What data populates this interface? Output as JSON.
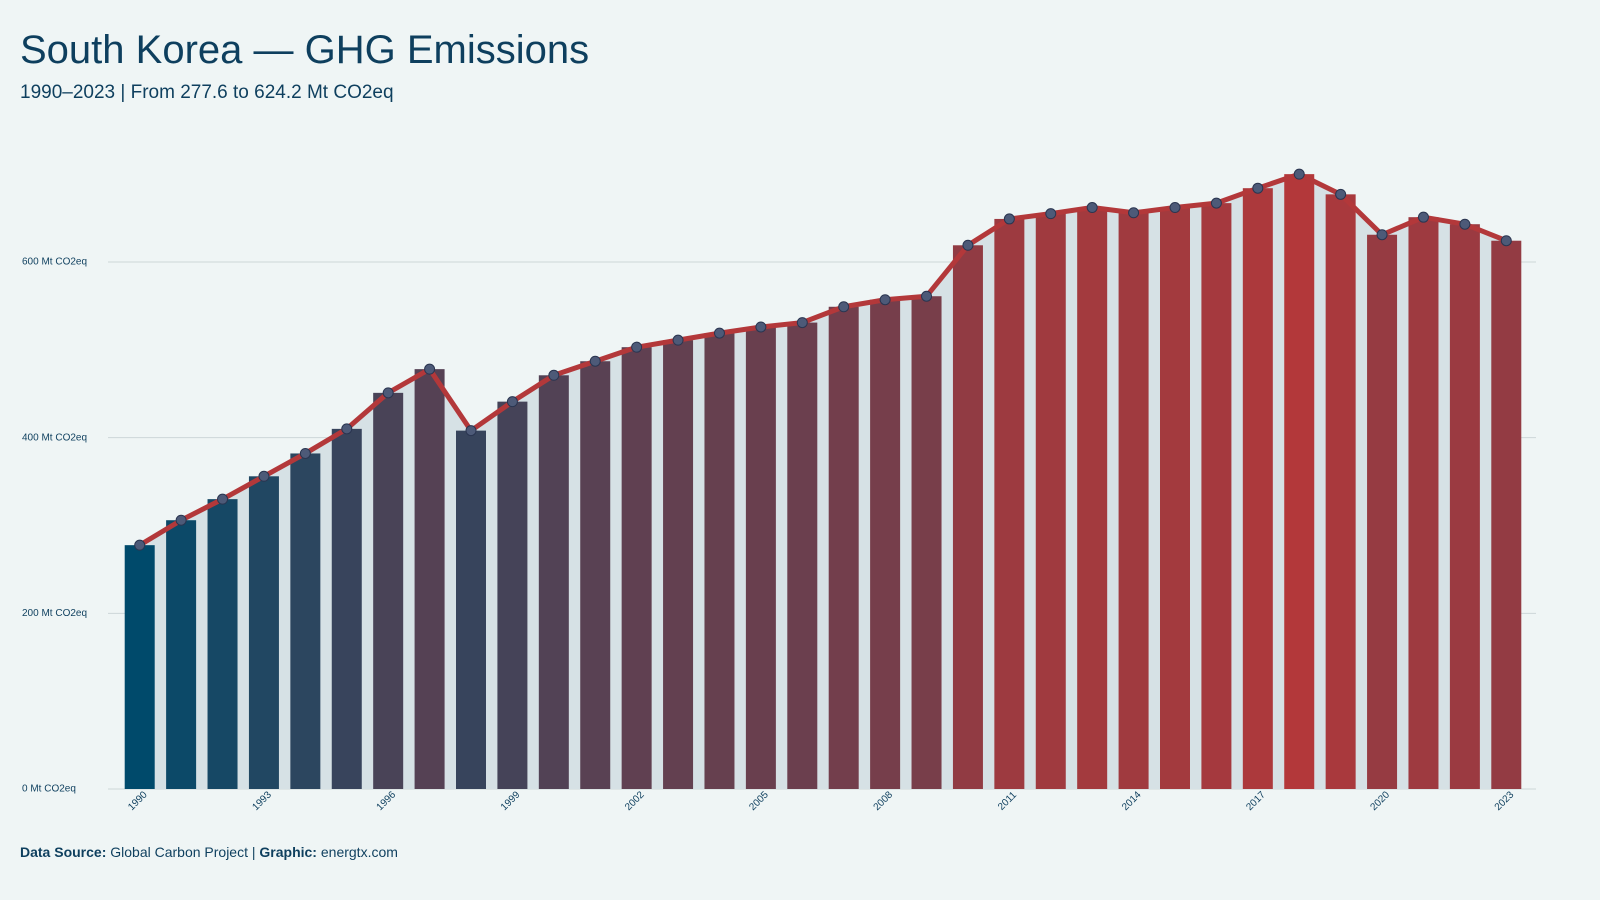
{
  "chart_data": {
    "type": "bar-line",
    "title": "South Korea — GHG Emissions",
    "subtitle": "1990–2023 | From 277.6 to 624.2 Mt CO2eq",
    "categories": [
      "1990",
      null,
      null,
      "1993",
      null,
      null,
      "1996",
      null,
      null,
      "1999",
      null,
      null,
      "2002",
      null,
      null,
      "2005",
      null,
      null,
      "2008",
      null,
      null,
      "2011",
      null,
      null,
      "2014",
      null,
      null,
      "2017",
      null,
      null,
      "2020",
      null,
      null,
      "2023"
    ],
    "values": [
      277.6,
      306,
      330,
      356,
      382,
      410,
      451,
      478,
      408,
      441,
      471,
      487,
      503,
      511,
      519,
      526,
      531,
      549,
      557,
      561,
      619,
      649,
      655,
      662,
      656,
      662,
      667,
      684,
      700,
      677,
      631,
      651,
      643,
      624.2
    ],
    "color_scale": [
      "#004a6b",
      "#b3383a"
    ],
    "line_color": "#b3383a",
    "marker_color": "#4d5a78",
    "area_color": "#d6e1e5",
    "ylim": [
      0,
      740
    ],
    "yticks": [
      {
        "value": 0,
        "label": "0 Mt CO2eq"
      },
      {
        "value": 200,
        "label": "200 Mt CO2eq"
      },
      {
        "value": 400,
        "label": "400 Mt CO2eq"
      },
      {
        "value": 600,
        "label": "600 Mt CO2eq"
      }
    ],
    "grid": true,
    "source_label": "Data Source:",
    "source": "Global Carbon Project |",
    "graphic_label": "Graphic:",
    "graphic": "energtx.com"
  }
}
